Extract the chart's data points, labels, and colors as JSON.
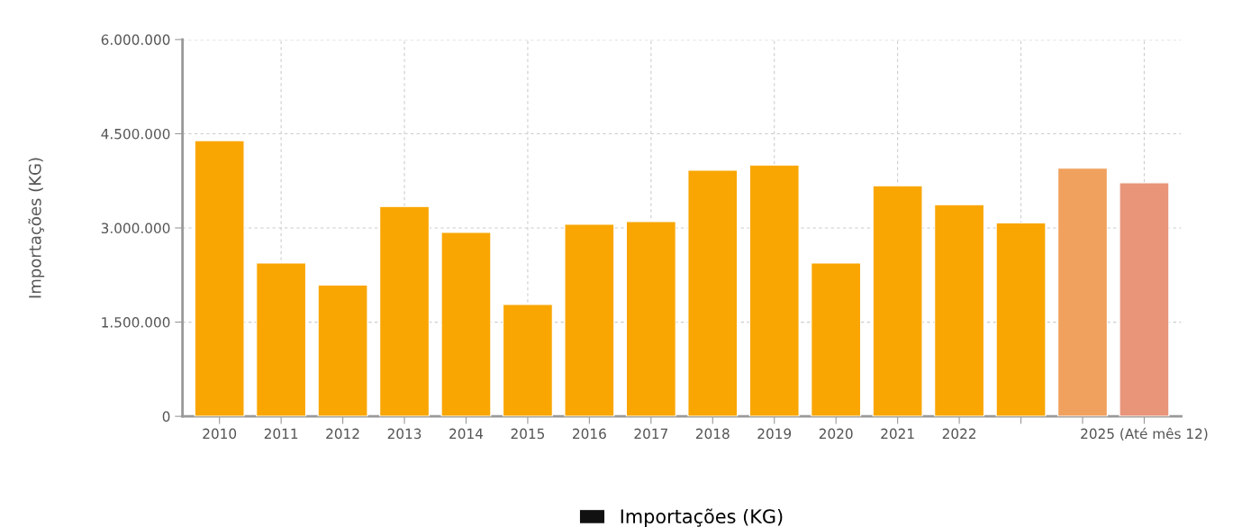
{
  "chart_data": {
    "type": "bar",
    "ylabel": "Importações (KG)",
    "categories": [
      "2010",
      "2011",
      "2012",
      "2013",
      "2014",
      "2015",
      "2016",
      "2017",
      "2018",
      "2019",
      "2020",
      "2021",
      "2022",
      null,
      null,
      "2025 (Até mês 12)"
    ],
    "series": [
      {
        "name": "Importações (KG)",
        "color": "#111111",
        "colors": [
          "#f9a602",
          "#f9a602",
          "#f9a602",
          "#f9a602",
          "#f9a602",
          "#f9a602",
          "#f9a602",
          "#f9a602",
          "#f9a602",
          "#f9a602",
          "#f9a602",
          "#f9a602",
          "#f9a602",
          "#f9a602",
          "#f0a15e",
          "#e8957a"
        ],
        "values": [
          4390000,
          2440000,
          2090000,
          3340000,
          2930000,
          1780000,
          3060000,
          3100000,
          3920000,
          4000000,
          2440000,
          3670000,
          3370000,
          3080000,
          3950000,
          3720000
        ]
      }
    ],
    "ylim": [
      0,
      6000000
    ],
    "yticks": [
      {
        "value": 0,
        "label": "0"
      },
      {
        "value": 1500000,
        "label": "1.500.000"
      },
      {
        "value": 3000000,
        "label": "3.000.000"
      },
      {
        "value": 4500000,
        "label": "4.500.000"
      },
      {
        "value": 6000000,
        "label": "6.000.000"
      }
    ],
    "grid": true,
    "legend": "bottom"
  }
}
